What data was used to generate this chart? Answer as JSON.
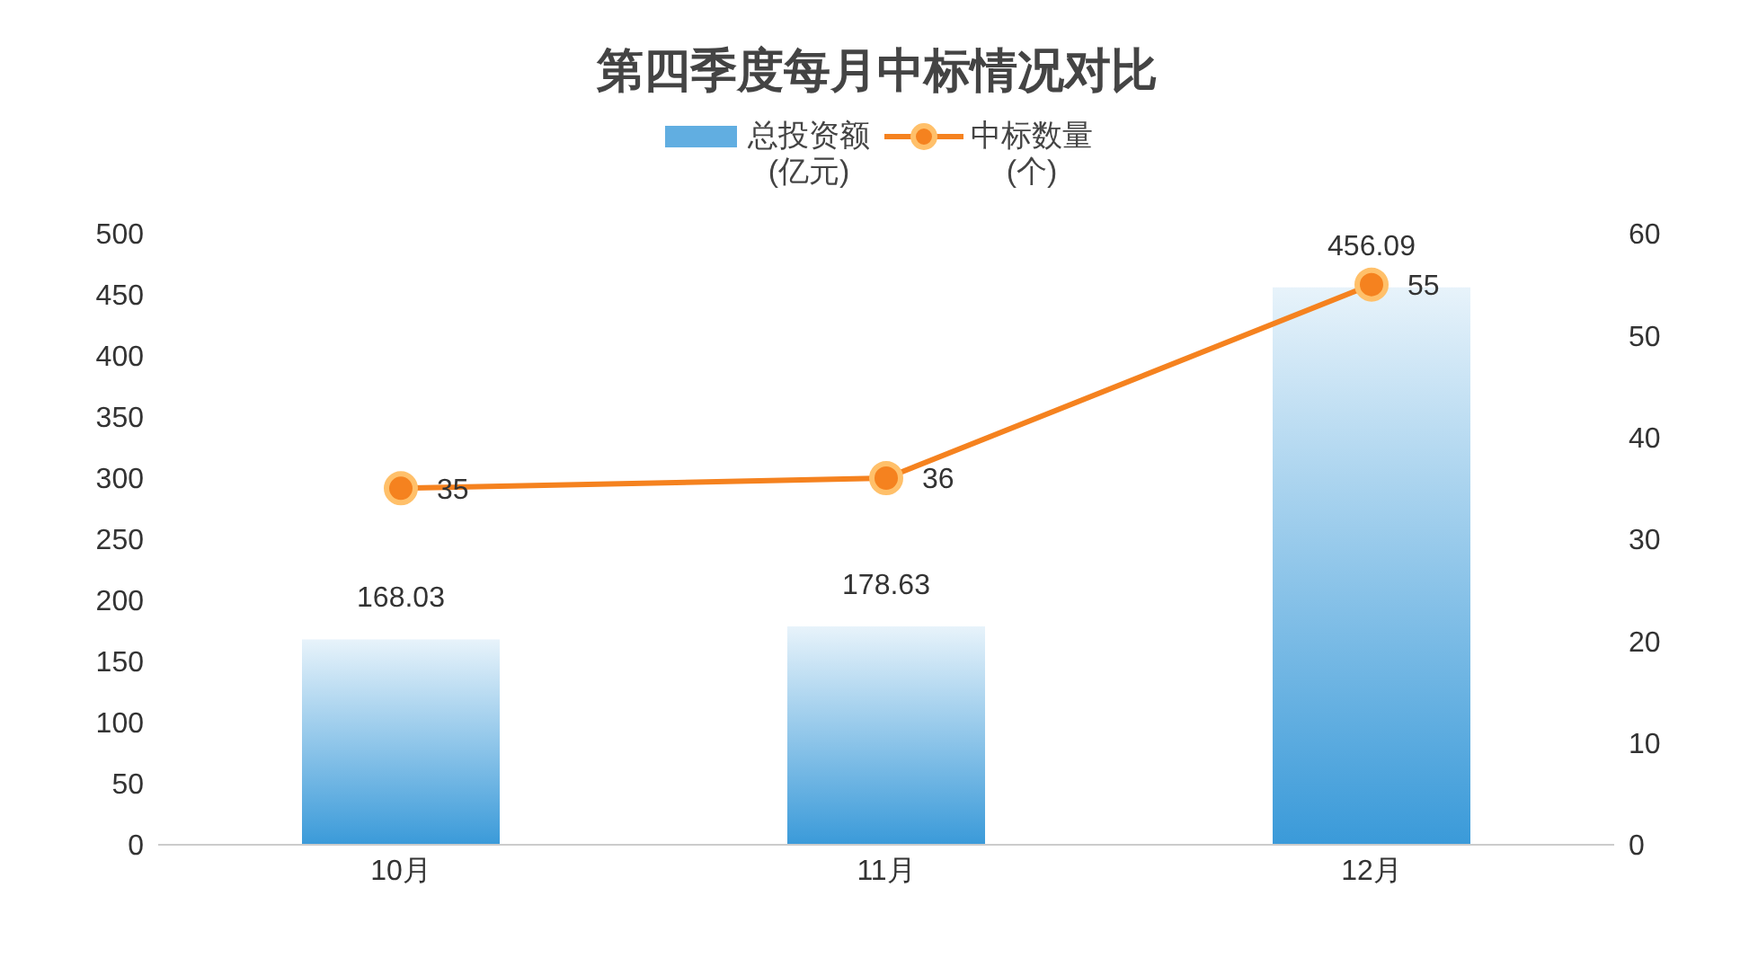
{
  "chart_data": {
    "type": "bar",
    "title": "第四季度每月中标情况对比",
    "categories": [
      "10月",
      "11月",
      "12月"
    ],
    "series": [
      {
        "name": "总投资额\n(亿元)",
        "color": "#3a9ad9",
        "values": [
          168.03,
          178.63,
          456.09
        ]
      },
      {
        "name": "中标数量\n(个)",
        "type": "line",
        "axis": "y2",
        "color": "#f5821f",
        "values": [
          35,
          36,
          55
        ]
      }
    ],
    "ylim": [
      0,
      500
    ],
    "yticks": [
      0,
      50,
      100,
      150,
      200,
      250,
      300,
      350,
      400,
      450,
      500
    ],
    "y2lim": [
      0,
      60
    ],
    "y2ticks": [
      0,
      10,
      20,
      30,
      40,
      50,
      60
    ],
    "data_labels": true,
    "legend": "top",
    "marker": "circle",
    "line_style": "solid"
  }
}
